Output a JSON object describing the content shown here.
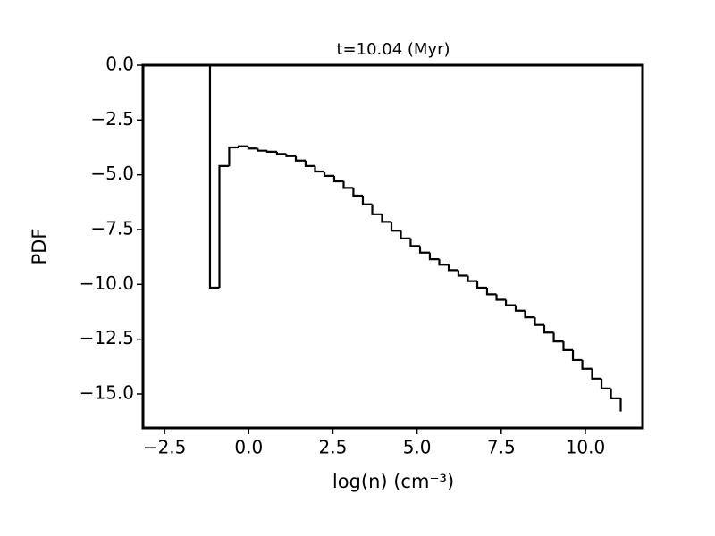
{
  "chart_data": {
    "type": "histogram",
    "title": "t=10.04 (Myr)",
    "xlabel": "log(n) (cm⁻³)",
    "ylabel": "PDF",
    "histtype": "step",
    "color": "#000000",
    "bins": [
      -1.15,
      -0.87,
      -0.58,
      -0.3,
      -0.01,
      0.27,
      0.55,
      0.84,
      1.12,
      1.4,
      1.69,
      1.97,
      2.25,
      2.54,
      2.82,
      3.11,
      3.39,
      3.67,
      3.96,
      4.24,
      4.52,
      4.81,
      5.09,
      5.38,
      5.66,
      5.94,
      6.23,
      6.51,
      6.79,
      7.08,
      7.36,
      7.64,
      7.93,
      8.21,
      8.5,
      8.78,
      9.06,
      9.35,
      9.63,
      9.91,
      10.2,
      10.48,
      10.76,
      11.05
    ],
    "counts": [
      -10.15,
      -4.6,
      -3.75,
      -3.7,
      -3.8,
      -3.9,
      -3.95,
      -4.05,
      -4.15,
      -4.35,
      -4.6,
      -4.85,
      -5.05,
      -5.3,
      -5.6,
      -5.95,
      -6.35,
      -6.8,
      -7.15,
      -7.55,
      -7.9,
      -8.25,
      -8.55,
      -8.85,
      -9.1,
      -9.35,
      -9.6,
      -9.85,
      -10.15,
      -10.45,
      -10.7,
      -10.95,
      -11.2,
      -11.5,
      -11.85,
      -12.2,
      -12.6,
      -13.0,
      -13.45,
      -13.85,
      -14.3,
      -14.75,
      -15.2,
      -15.8
    ],
    "xlim": [
      -3.14,
      11.7
    ],
    "ylim": [
      -16.55,
      0
    ],
    "xticks": [
      {
        "value": -2.5,
        "label": "−2.5"
      },
      {
        "value": 0,
        "label": "0.0"
      },
      {
        "value": 2.5,
        "label": "2.5"
      },
      {
        "value": 5,
        "label": "5.0"
      },
      {
        "value": 7.5,
        "label": "7.5"
      },
      {
        "value": 10,
        "label": "10.0"
      }
    ],
    "yticks": [
      {
        "value": 0,
        "label": "0.0"
      },
      {
        "value": -2.5,
        "label": "−2.5"
      },
      {
        "value": -5,
        "label": "−5.0"
      },
      {
        "value": -7.5,
        "label": "−7.5"
      },
      {
        "value": -10,
        "label": "−10.0"
      },
      {
        "value": -12.5,
        "label": "−12.5"
      },
      {
        "value": -15,
        "label": "−15.0"
      }
    ],
    "grid": false
  }
}
